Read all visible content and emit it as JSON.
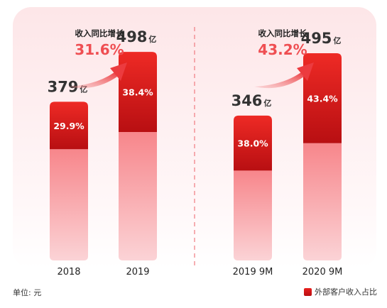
{
  "chart_data": {
    "type": "bar",
    "categories": [
      "2018",
      "2019",
      "2019 9M",
      "2020 9M"
    ],
    "values": [
      379,
      498,
      346,
      495
    ],
    "value_unit": "亿",
    "external_share_labels": [
      "29.9%",
      "38.4%",
      "38.0%",
      "43.4%"
    ],
    "external_share": [
      29.9,
      38.4,
      38.0,
      43.4
    ],
    "growth_panels": [
      {
        "label": "收入同比增长",
        "value": "31.6%"
      },
      {
        "label": "收入同比增长",
        "value": "43.2%"
      }
    ],
    "legend": "外部客户收入占比",
    "unit_note": "单位: 元",
    "ylim": [
      0,
      560
    ],
    "colors": {
      "external": "#d81417",
      "other": "#f7858a",
      "accent": "#ef4e52",
      "background_top": "#fde8ea"
    }
  }
}
